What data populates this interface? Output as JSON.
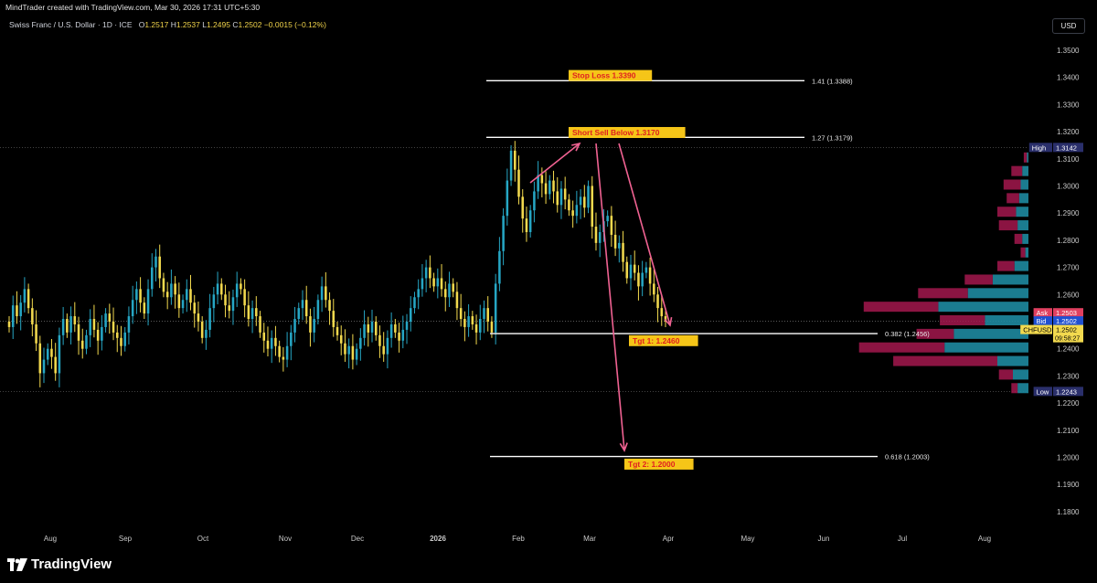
{
  "header": {
    "attribution": "MindTrader created with TradingView.com, Mar 30, 2026 17:31 UTC+5:30",
    "symbol": "Swiss Franc / U.S. Dollar · 1D · ICE",
    "ohlc": {
      "o_label": "O",
      "o": "1.2517",
      "h_label": "H",
      "h": "1.2537",
      "l_label": "L",
      "l": "1.2495",
      "c_label": "C",
      "c": "1.2502",
      "change": "−0.0015 (−0.12%)"
    }
  },
  "currency_button": "USD",
  "logo_text": "TradingView",
  "colors": {
    "up": "#26a6c4",
    "down": "#f2d94e",
    "background": "#000000",
    "arrow": "#f06292",
    "label_bg": "#f5c518",
    "label_text": "#e02020",
    "vp_up": "#1e8aa0",
    "vp_down": "#a3174e"
  },
  "chart_data": {
    "type": "candlestick",
    "ylim": [
      1.175,
      1.355
    ],
    "y_ticks": [
      "1.1800",
      "1.1900",
      "1.2000",
      "1.2100",
      "1.2200",
      "1.2300",
      "1.2400",
      "1.2500",
      "1.2600",
      "1.2700",
      "1.2800",
      "1.2900",
      "1.3000",
      "1.3100",
      "1.3200",
      "1.3300",
      "1.3400",
      "1.3500"
    ],
    "x_labels": [
      "Aug",
      "Sep",
      "Oct",
      "Nov",
      "Dec",
      "2026",
      "Feb",
      "Mar",
      "Apr",
      "May",
      "Jun",
      "Jul",
      "Aug"
    ],
    "closes": [
      1.248,
      1.256,
      1.252,
      1.257,
      1.262,
      1.255,
      1.249,
      1.242,
      1.231,
      1.236,
      1.24,
      1.237,
      1.231,
      1.245,
      1.251,
      1.246,
      1.252,
      1.249,
      1.243,
      1.24,
      1.245,
      1.251,
      1.247,
      1.243,
      1.248,
      1.253,
      1.25,
      1.246,
      1.244,
      1.241,
      1.246,
      1.252,
      1.258,
      1.262,
      1.257,
      1.253,
      1.262,
      1.27,
      1.274,
      1.266,
      1.261,
      1.259,
      1.264,
      1.26,
      1.255,
      1.258,
      1.262,
      1.257,
      1.253,
      1.25,
      1.244,
      1.247,
      1.255,
      1.26,
      1.264,
      1.26,
      1.256,
      1.254,
      1.259,
      1.264,
      1.262,
      1.256,
      1.251,
      1.255,
      1.252,
      1.246,
      1.243,
      1.24,
      1.244,
      1.241,
      1.237,
      1.236,
      1.241,
      1.246,
      1.251,
      1.255,
      1.258,
      1.252,
      1.246,
      1.251,
      1.258,
      1.263,
      1.258,
      1.254,
      1.248,
      1.245,
      1.242,
      1.238,
      1.241,
      1.236,
      1.24,
      1.244,
      1.249,
      1.246,
      1.25,
      1.245,
      1.241,
      1.238,
      1.244,
      1.249,
      1.246,
      1.243,
      1.247,
      1.25,
      1.255,
      1.259,
      1.262,
      1.266,
      1.27,
      1.266,
      1.263,
      1.266,
      1.262,
      1.259,
      1.264,
      1.261,
      1.255,
      1.251,
      1.248,
      1.252,
      1.249,
      1.246,
      1.251,
      1.255,
      1.25,
      1.246,
      1.264,
      1.276,
      1.289,
      1.302,
      1.313,
      1.306,
      1.296,
      1.288,
      1.283,
      1.291,
      1.298,
      1.304,
      1.301,
      1.297,
      1.302,
      1.298,
      1.293,
      1.299,
      1.295,
      1.291,
      1.289,
      1.293,
      1.296,
      1.292,
      1.3,
      1.285,
      1.279,
      1.283,
      1.287,
      1.289,
      1.282,
      1.277,
      1.279,
      1.272,
      1.266,
      1.271,
      1.268,
      1.263,
      1.268,
      1.27,
      1.264,
      1.26,
      1.255,
      1.252,
      1.25
    ],
    "volume_profile": [
      {
        "price": 1.3105,
        "up": 0.01,
        "down": 0.02
      },
      {
        "price": 1.3055,
        "up": 0.04,
        "down": 0.07
      },
      {
        "price": 1.3005,
        "up": 0.05,
        "down": 0.11
      },
      {
        "price": 1.2955,
        "up": 0.06,
        "down": 0.08
      },
      {
        "price": 1.2905,
        "up": 0.08,
        "down": 0.12
      },
      {
        "price": 1.2855,
        "up": 0.07,
        "down": 0.12
      },
      {
        "price": 1.2805,
        "up": 0.04,
        "down": 0.05
      },
      {
        "price": 1.2755,
        "up": 0.02,
        "down": 0.03
      },
      {
        "price": 1.2705,
        "up": 0.09,
        "down": 0.11
      },
      {
        "price": 1.2655,
        "up": 0.23,
        "down": 0.18
      },
      {
        "price": 1.2605,
        "up": 0.39,
        "down": 0.32
      },
      {
        "price": 1.2555,
        "up": 0.58,
        "down": 0.48
      },
      {
        "price": 1.2505,
        "up": 0.28,
        "down": 0.29
      },
      {
        "price": 1.2455,
        "up": 0.48,
        "down": 0.24
      },
      {
        "price": 1.2405,
        "up": 0.54,
        "down": 0.55
      },
      {
        "price": 1.2355,
        "up": 0.2,
        "down": 0.67
      },
      {
        "price": 1.2305,
        "up": 0.1,
        "down": 0.09
      },
      {
        "price": 1.2255,
        "up": 0.07,
        "down": 0.04
      }
    ],
    "levels": [
      {
        "price": 1.3388,
        "label": "1.41 (1.3388)"
      },
      {
        "price": 1.3179,
        "label": "1.27 (1.3179)"
      },
      {
        "price": 1.2456,
        "label": "0.382 (1.2456)"
      },
      {
        "price": 1.2003,
        "label": "0.618 (1.2003)"
      }
    ],
    "annotations": [
      {
        "text": "Stop Loss 1.3390",
        "price": 1.3407
      },
      {
        "text": "Short Sell Below 1.3170",
        "price": 1.3197
      },
      {
        "text": "Tgt 1: 1.2460",
        "price": 1.243
      },
      {
        "text": "Tgt 2: 1.2000",
        "price": 1.1975
      }
    ],
    "axis_badges": [
      {
        "label": "High",
        "value": "1.3142",
        "price": 1.3142,
        "label_color": "#2a2f6b",
        "value_color": "#2a2f6b"
      },
      {
        "label": "Ask",
        "value": "1.2503",
        "price": 1.2533,
        "label_color": "#e04060",
        "value_color": "#e04060"
      },
      {
        "label": "Bid",
        "value": "1.2502",
        "price": 1.2503,
        "label_color": "#2050d0",
        "value_color": "#2050d0"
      },
      {
        "label": "CHFUSD",
        "value": "1.2502",
        "sub": "09:58:27",
        "price": 1.2471,
        "label_color": "#f2d94e",
        "value_color": "#f2d94e"
      },
      {
        "label": "Low",
        "value": "1.2243",
        "price": 1.2243,
        "label_color": "#2a2f6b",
        "value_color": "#2a2f6b"
      }
    ]
  }
}
